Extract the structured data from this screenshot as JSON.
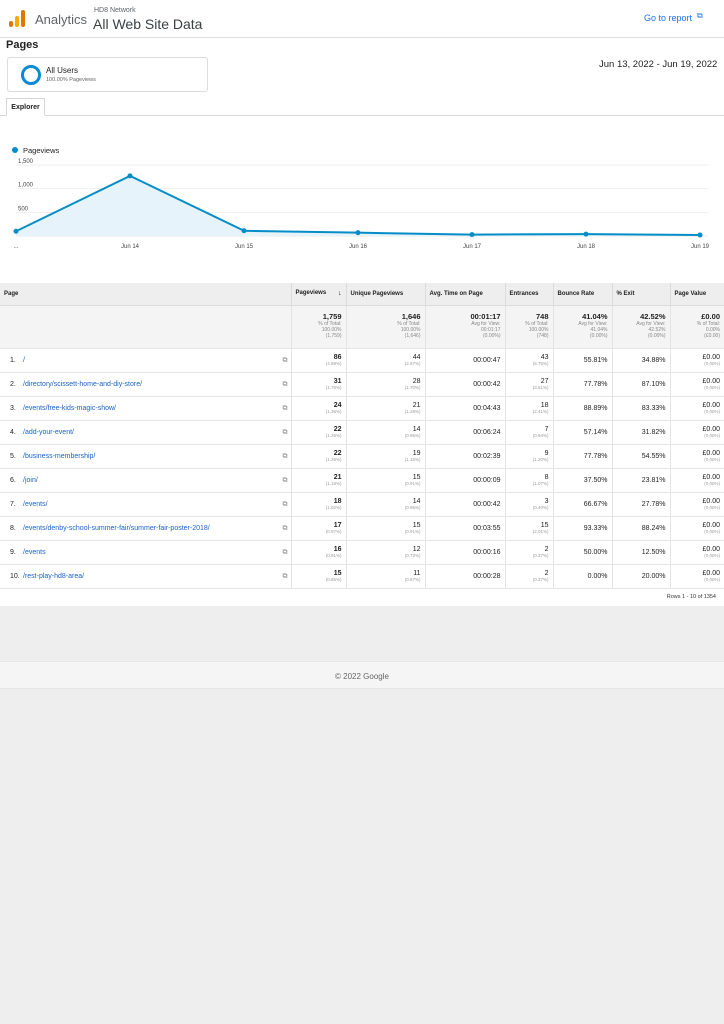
{
  "header": {
    "brand": "Analytics",
    "property": "HD8 Network",
    "view": "All Web Site Data",
    "goto_report": "Go to report",
    "external_icon": "external-link-icon"
  },
  "page_title": "Pages",
  "segment": {
    "name": "All Users",
    "sub": "100.00% Pageviews"
  },
  "date_range": "Jun 13, 2022 - Jun 19, 2022",
  "tab": "Explorer",
  "colors": {
    "series": "#058dc7",
    "link": "#1a62c7",
    "accent": "#1a73e8"
  },
  "chart_data": {
    "type": "area",
    "legend": [
      "Pageviews"
    ],
    "x": [
      "...",
      "Jun 14",
      "Jun 15",
      "Jun 16",
      "Jun 17",
      "Jun 18",
      "Jun 19"
    ],
    "series": [
      {
        "name": "Pageviews",
        "values": [
          100,
          1270,
          110,
          70,
          30,
          40,
          20
        ]
      }
    ],
    "yticks": [
      "1,500",
      "1,000",
      "500"
    ],
    "ylim": [
      0,
      1500
    ],
    "grid": true
  },
  "table": {
    "headers": [
      "Page",
      "Pageviews",
      "Unique Pageviews",
      "Avg. Time on Page",
      "Entrances",
      "Bounce Rate",
      "% Exit",
      "Page Value"
    ],
    "sort_icon": "arrow-down-icon",
    "totals": [
      {
        "main": "1,759",
        "l1": "% of Total:",
        "l2": "100.00%",
        "l3": "(1,759)"
      },
      {
        "main": "1,646",
        "l1": "% of Total:",
        "l2": "100.00%",
        "l3": "(1,646)"
      },
      {
        "main": "00:01:17",
        "l1": "Avg for View:",
        "l2": "00:01:17",
        "l3": "(0.00%)"
      },
      {
        "main": "748",
        "l1": "% of Total:",
        "l2": "100.00%",
        "l3": "(748)"
      },
      {
        "main": "41.04%",
        "l1": "Avg for View:",
        "l2": "41.04%",
        "l3": "(0.00%)"
      },
      {
        "main": "42.52%",
        "l1": "Avg for View:",
        "l2": "42.52%",
        "l3": "(0.00%)"
      },
      {
        "main": "£0.00",
        "l1": "% of Total:",
        "l2": "0.00%",
        "l3": "(£0.00)"
      }
    ],
    "rows": [
      {
        "idx": "1.",
        "page": "/",
        "pv": "86",
        "pvp": "(4.89%)",
        "upv": "44",
        "upvp": "(2.67%)",
        "time": "00:00:47",
        "ent": "43",
        "entp": "(5.75%)",
        "bounce": "55.81%",
        "exit": "34.88%",
        "val": "£0.00",
        "valp": "(0.00%)"
      },
      {
        "idx": "2.",
        "page": "/directory/scissett-home-and-diy-store/",
        "pv": "31",
        "pvp": "(1.76%)",
        "upv": "28",
        "upvp": "(1.70%)",
        "time": "00:00:42",
        "ent": "27",
        "entp": "(3.61%)",
        "bounce": "77.78%",
        "exit": "87.10%",
        "val": "£0.00",
        "valp": "(0.00%)"
      },
      {
        "idx": "3.",
        "page": "/events/free-kids-magic-show/",
        "pv": "24",
        "pvp": "(1.36%)",
        "upv": "21",
        "upvp": "(1.28%)",
        "time": "00:04:43",
        "ent": "18",
        "entp": "(2.41%)",
        "bounce": "88.89%",
        "exit": "83.33%",
        "val": "£0.00",
        "valp": "(0.00%)"
      },
      {
        "idx": "4.",
        "page": "/add-your-event/",
        "pv": "22",
        "pvp": "(1.25%)",
        "upv": "14",
        "upvp": "(0.85%)",
        "time": "00:06:24",
        "ent": "7",
        "entp": "(0.94%)",
        "bounce": "57.14%",
        "exit": "31.82%",
        "val": "£0.00",
        "valp": "(0.00%)"
      },
      {
        "idx": "5.",
        "page": "/business-membership/",
        "pv": "22",
        "pvp": "(1.25%)",
        "upv": "19",
        "upvp": "(1.15%)",
        "time": "00:02:39",
        "ent": "9",
        "entp": "(1.20%)",
        "bounce": "77.78%",
        "exit": "54.55%",
        "val": "£0.00",
        "valp": "(0.00%)"
      },
      {
        "idx": "6.",
        "page": "/join/",
        "pv": "21",
        "pvp": "(1.19%)",
        "upv": "15",
        "upvp": "(0.91%)",
        "time": "00:00:09",
        "ent": "8",
        "entp": "(1.07%)",
        "bounce": "37.50%",
        "exit": "23.81%",
        "val": "£0.00",
        "valp": "(0.00%)"
      },
      {
        "idx": "7.",
        "page": "/events/",
        "pv": "18",
        "pvp": "(1.02%)",
        "upv": "14",
        "upvp": "(0.85%)",
        "time": "00:00:42",
        "ent": "3",
        "entp": "(0.40%)",
        "bounce": "66.67%",
        "exit": "27.78%",
        "val": "£0.00",
        "valp": "(0.00%)"
      },
      {
        "idx": "8.",
        "page": "/events/denby-school-summer-fair/summer-fair-poster-2018/",
        "pv": "17",
        "pvp": "(0.97%)",
        "upv": "15",
        "upvp": "(0.91%)",
        "time": "00:03:55",
        "ent": "15",
        "entp": "(2.01%)",
        "bounce": "93.33%",
        "exit": "88.24%",
        "val": "£0.00",
        "valp": "(0.00%)"
      },
      {
        "idx": "9.",
        "page": "/events",
        "pv": "16",
        "pvp": "(0.91%)",
        "upv": "12",
        "upvp": "(0.73%)",
        "time": "00:00:16",
        "ent": "2",
        "entp": "(0.27%)",
        "bounce": "50.00%",
        "exit": "12.50%",
        "val": "£0.00",
        "valp": "(0.00%)"
      },
      {
        "idx": "10.",
        "page": "/rest-play-hd8-area/",
        "pv": "15",
        "pvp": "(0.85%)",
        "upv": "11",
        "upvp": "(0.67%)",
        "time": "00:00:28",
        "ent": "2",
        "entp": "(0.27%)",
        "bounce": "0.00%",
        "exit": "20.00%",
        "val": "£0.00",
        "valp": "(0.00%)"
      }
    ],
    "rows_info": "Rows 1 - 10 of 1354"
  },
  "footer": "© 2022 Google"
}
